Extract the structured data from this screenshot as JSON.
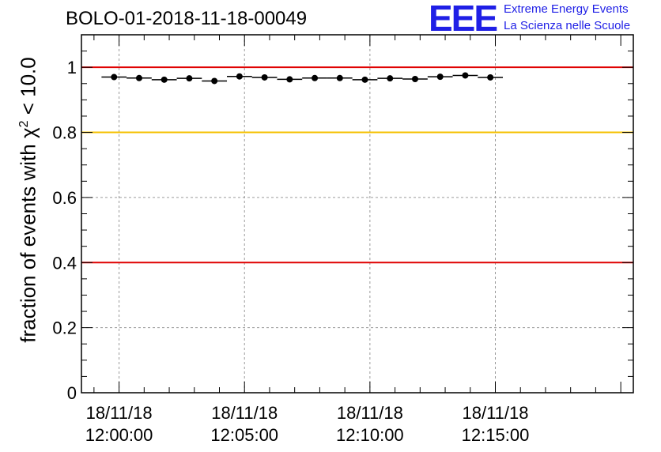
{
  "header": {
    "title": "BOLO-01-2018-11-18-00049",
    "logo_mark": "EEE",
    "logo_line1": "Extreme Energy Events",
    "logo_line2": "La Scienza nelle Scuole"
  },
  "colors": {
    "logo": "#1f1fe6",
    "red_line": "#e00000",
    "yellow_line": "#f5c000",
    "points": "#000000",
    "grid": "#9a9a9a"
  },
  "chart_data": {
    "type": "scatter",
    "title": "BOLO-01-2018-11-18-00049",
    "ylabel_prefix": "fraction of events with ",
    "ylabel_symbol": "χ",
    "ylabel_exponent": "2",
    "ylabel_suffix": " < 10.0",
    "xlabel": "",
    "ylim": [
      0,
      1.1
    ],
    "xlim_seconds_from_start": [
      -90,
      1230
    ],
    "y_ticks": [
      {
        "value": 0,
        "label": "0"
      },
      {
        "value": 0.2,
        "label": "0.2"
      },
      {
        "value": 0.4,
        "label": "0.4"
      },
      {
        "value": 0.6,
        "label": "0.6"
      },
      {
        "value": 0.8,
        "label": "0.8"
      },
      {
        "value": 1.0,
        "label": "1"
      }
    ],
    "x_ticks": [
      {
        "seconds": 0,
        "date": "18/11/18",
        "time": "12:00:00"
      },
      {
        "seconds": 300,
        "date": "18/11/18",
        "time": "12:05:00"
      },
      {
        "seconds": 600,
        "date": "18/11/18",
        "time": "12:10:00"
      },
      {
        "seconds": 900,
        "date": "18/11/18",
        "time": "12:15:00"
      }
    ],
    "grid": true,
    "reference_lines": [
      {
        "y": 1.0,
        "color": "#e00000"
      },
      {
        "y": 0.8,
        "color": "#f5c000"
      },
      {
        "y": 0.4,
        "color": "#e00000"
      }
    ],
    "bin_width_seconds": 60,
    "series": [
      {
        "x": [
          -12,
          48,
          108,
          168,
          228,
          288,
          348,
          408,
          468,
          528,
          588,
          648,
          708,
          768,
          828,
          888
        ],
        "values": [
          0.97,
          0.967,
          0.962,
          0.966,
          0.958,
          0.972,
          0.969,
          0.963,
          0.967,
          0.967,
          0.962,
          0.966,
          0.964,
          0.971,
          0.975,
          0.969
        ]
      }
    ]
  }
}
